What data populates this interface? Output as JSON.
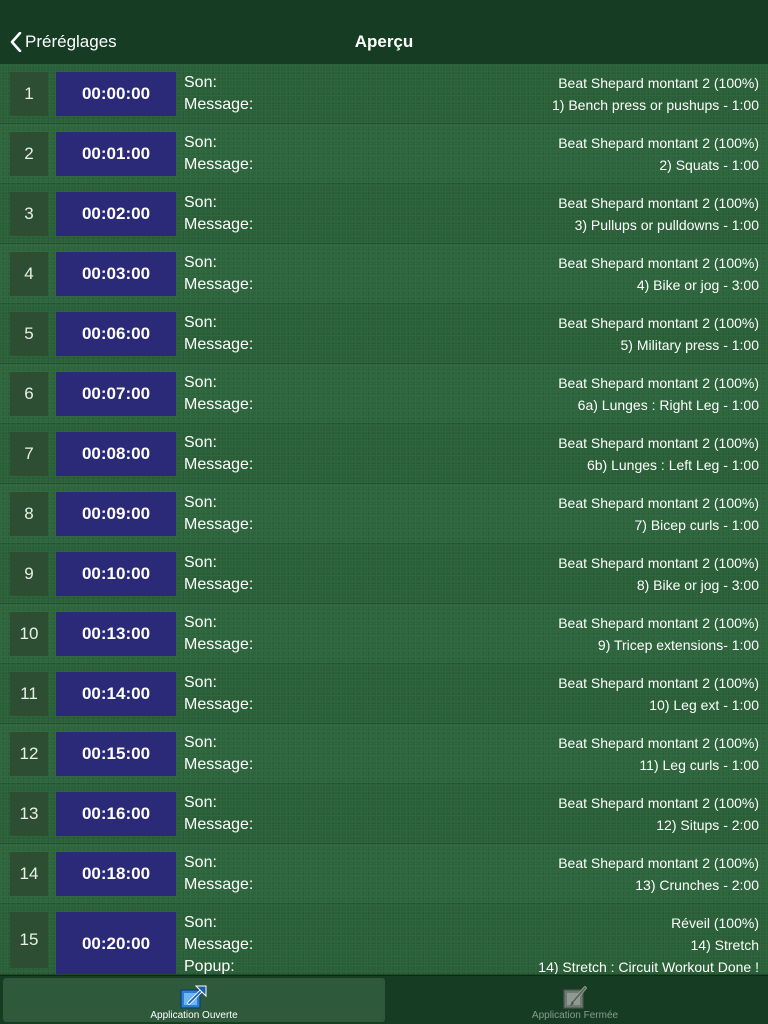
{
  "nav": {
    "back_label": "Préréglages",
    "title": "Aperçu"
  },
  "labels": {
    "sound": "Son:",
    "message": "Message:",
    "popup": "Popup:"
  },
  "rows": [
    {
      "num": "1",
      "time": "00:00:00",
      "sound": "Beat Shepard montant 2 (100%)",
      "message": "1) Bench press or pushups - 1:00"
    },
    {
      "num": "2",
      "time": "00:01:00",
      "sound": "Beat Shepard montant 2 (100%)",
      "message": "2) Squats - 1:00"
    },
    {
      "num": "3",
      "time": "00:02:00",
      "sound": "Beat Shepard montant 2 (100%)",
      "message": "3) Pullups or pulldowns - 1:00"
    },
    {
      "num": "4",
      "time": "00:03:00",
      "sound": "Beat Shepard montant 2 (100%)",
      "message": "4) Bike or jog - 3:00"
    },
    {
      "num": "5",
      "time": "00:06:00",
      "sound": "Beat Shepard montant 2 (100%)",
      "message": "5) Military press - 1:00"
    },
    {
      "num": "6",
      "time": "00:07:00",
      "sound": "Beat Shepard montant 2 (100%)",
      "message": "6a) Lunges : Right Leg - 1:00"
    },
    {
      "num": "7",
      "time": "00:08:00",
      "sound": "Beat Shepard montant 2 (100%)",
      "message": "6b) Lunges : Left Leg - 1:00"
    },
    {
      "num": "8",
      "time": "00:09:00",
      "sound": "Beat Shepard montant 2 (100%)",
      "message": "7) Bicep curls - 1:00"
    },
    {
      "num": "9",
      "time": "00:10:00",
      "sound": "Beat Shepard montant 2 (100%)",
      "message": "8) Bike or jog - 3:00"
    },
    {
      "num": "10",
      "time": "00:13:00",
      "sound": "Beat Shepard montant 2 (100%)",
      "message": "9) Tricep extensions- 1:00"
    },
    {
      "num": "11",
      "time": "00:14:00",
      "sound": "Beat Shepard montant 2 (100%)",
      "message": "10) Leg ext - 1:00"
    },
    {
      "num": "12",
      "time": "00:15:00",
      "sound": "Beat Shepard montant 2 (100%)",
      "message": "11) Leg curls - 1:00"
    },
    {
      "num": "13",
      "time": "00:16:00",
      "sound": "Beat Shepard montant 2 (100%)",
      "message": "12) Situps - 2:00"
    },
    {
      "num": "14",
      "time": "00:18:00",
      "sound": "Beat Shepard montant 2 (100%)",
      "message": "13) Crunches - 2:00"
    },
    {
      "num": "15",
      "time": "00:20:00",
      "sound": "Réveil (100%)",
      "message": "14) Stretch",
      "popup": "14) Stretch : Circuit Workout Done !"
    }
  ],
  "tabs": [
    {
      "label": "Application Ouverte",
      "icon": "open-app-icon",
      "active": true
    },
    {
      "label": "Application Fermée",
      "icon": "closed-app-icon",
      "active": false
    }
  ],
  "colors": {
    "background": "#1c4a2c",
    "navbar": "#163d24",
    "time_box": "#2b2a78",
    "number_box": "#2e4e34",
    "tab_active_icon": "#2a7fd4",
    "tab_inactive_icon": "#6f7a72"
  }
}
